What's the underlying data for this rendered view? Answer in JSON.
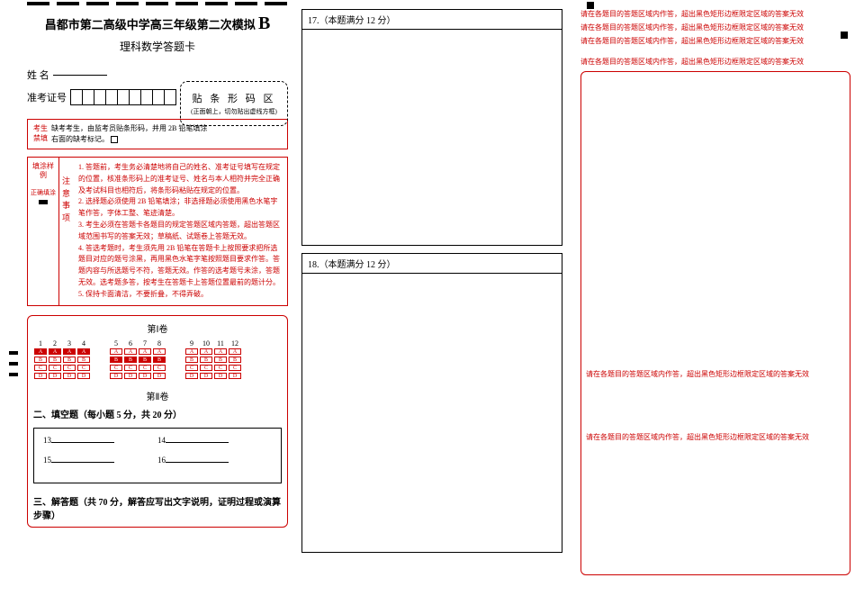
{
  "header": {
    "title": "昌都市第二高级中学高三年级第二次模拟",
    "variant": "B",
    "subtitle": "理科数学答题卡"
  },
  "student": {
    "name_label": "姓 名",
    "id_label": "准考证号",
    "id_box_count": 9
  },
  "barcode": {
    "title": "贴 条 形 码 区",
    "note": "(正面朝上，切勿贴出虚线方框)"
  },
  "exam_notice": {
    "left1": "考生",
    "left2": "禁填",
    "line1": "缺考考生，由监考员贴条形码，并用 2B 铅笔填涂",
    "line2": "右面的缺考标记。"
  },
  "fill_sample": {
    "label": "填涂样例",
    "correct": "正确填涂"
  },
  "instructions": {
    "label": "注意事项",
    "items": [
      "1. 答题前，考生务必清楚地将自己的姓名、准考证号填写在规定的位置，核准条形码上的准考证号、姓名与本人相符并完全正确及考试科目也相符后，将条形码粘贴在规定的位置。",
      "2. 选择题必须使用 2B 铅笔填涂；非选择题必须使用黑色水笔字笔作答，字体工整、笔迹清楚。",
      "3. 考生必须在答题卡各题目的规定答题区域内答题，超出答题区域范围书写的答案无效；草稿纸、试题卷上答题无效。",
      "4. 答选考题时，考生须先用 2B 铅笔在答题卡上按照要求把所选题目对应的题号涂黑，再用黑色水笔字笔按照题目要求作答。答题内容与所选题号不符，答题无效。作答的选考题号未涂，答题无效。选考题多答，按考生在答题卡上答题位置最前的题计分。",
      "5. 保持卡面清洁，不要折叠，不得弄破。"
    ]
  },
  "sections": {
    "part1": "第Ⅰ卷",
    "part2": "第Ⅱ卷",
    "fill_title": "二、填空题（每小题 5 分，共 20 分）",
    "solve_title": "三、解答题（共 70 分，解答应写出文字说明，证明过程或演算步骤）"
  },
  "mc": {
    "groups": [
      {
        "nums": [
          "1",
          "2",
          "3",
          "4"
        ],
        "filled_row": 0
      },
      {
        "nums": [
          "5",
          "6",
          "7",
          "8"
        ],
        "filled_row": 1
      },
      {
        "nums": [
          "9",
          "10",
          "11",
          "12"
        ],
        "filled_row": -1
      }
    ],
    "options": [
      "A",
      "B",
      "C",
      "D"
    ]
  },
  "fill_blanks": {
    "items": [
      "13",
      "14",
      "15",
      "16"
    ]
  },
  "questions": {
    "q17": "17.（本题满分 12 分）",
    "q18": "18.（本题满分 12 分）"
  },
  "warning_text": "请在各题目的答题区域内作答，超出黑色矩形边框限定区域的答案无效",
  "colors": {
    "red": "#cc0000",
    "black": "#000000",
    "bg": "#ffffff"
  }
}
